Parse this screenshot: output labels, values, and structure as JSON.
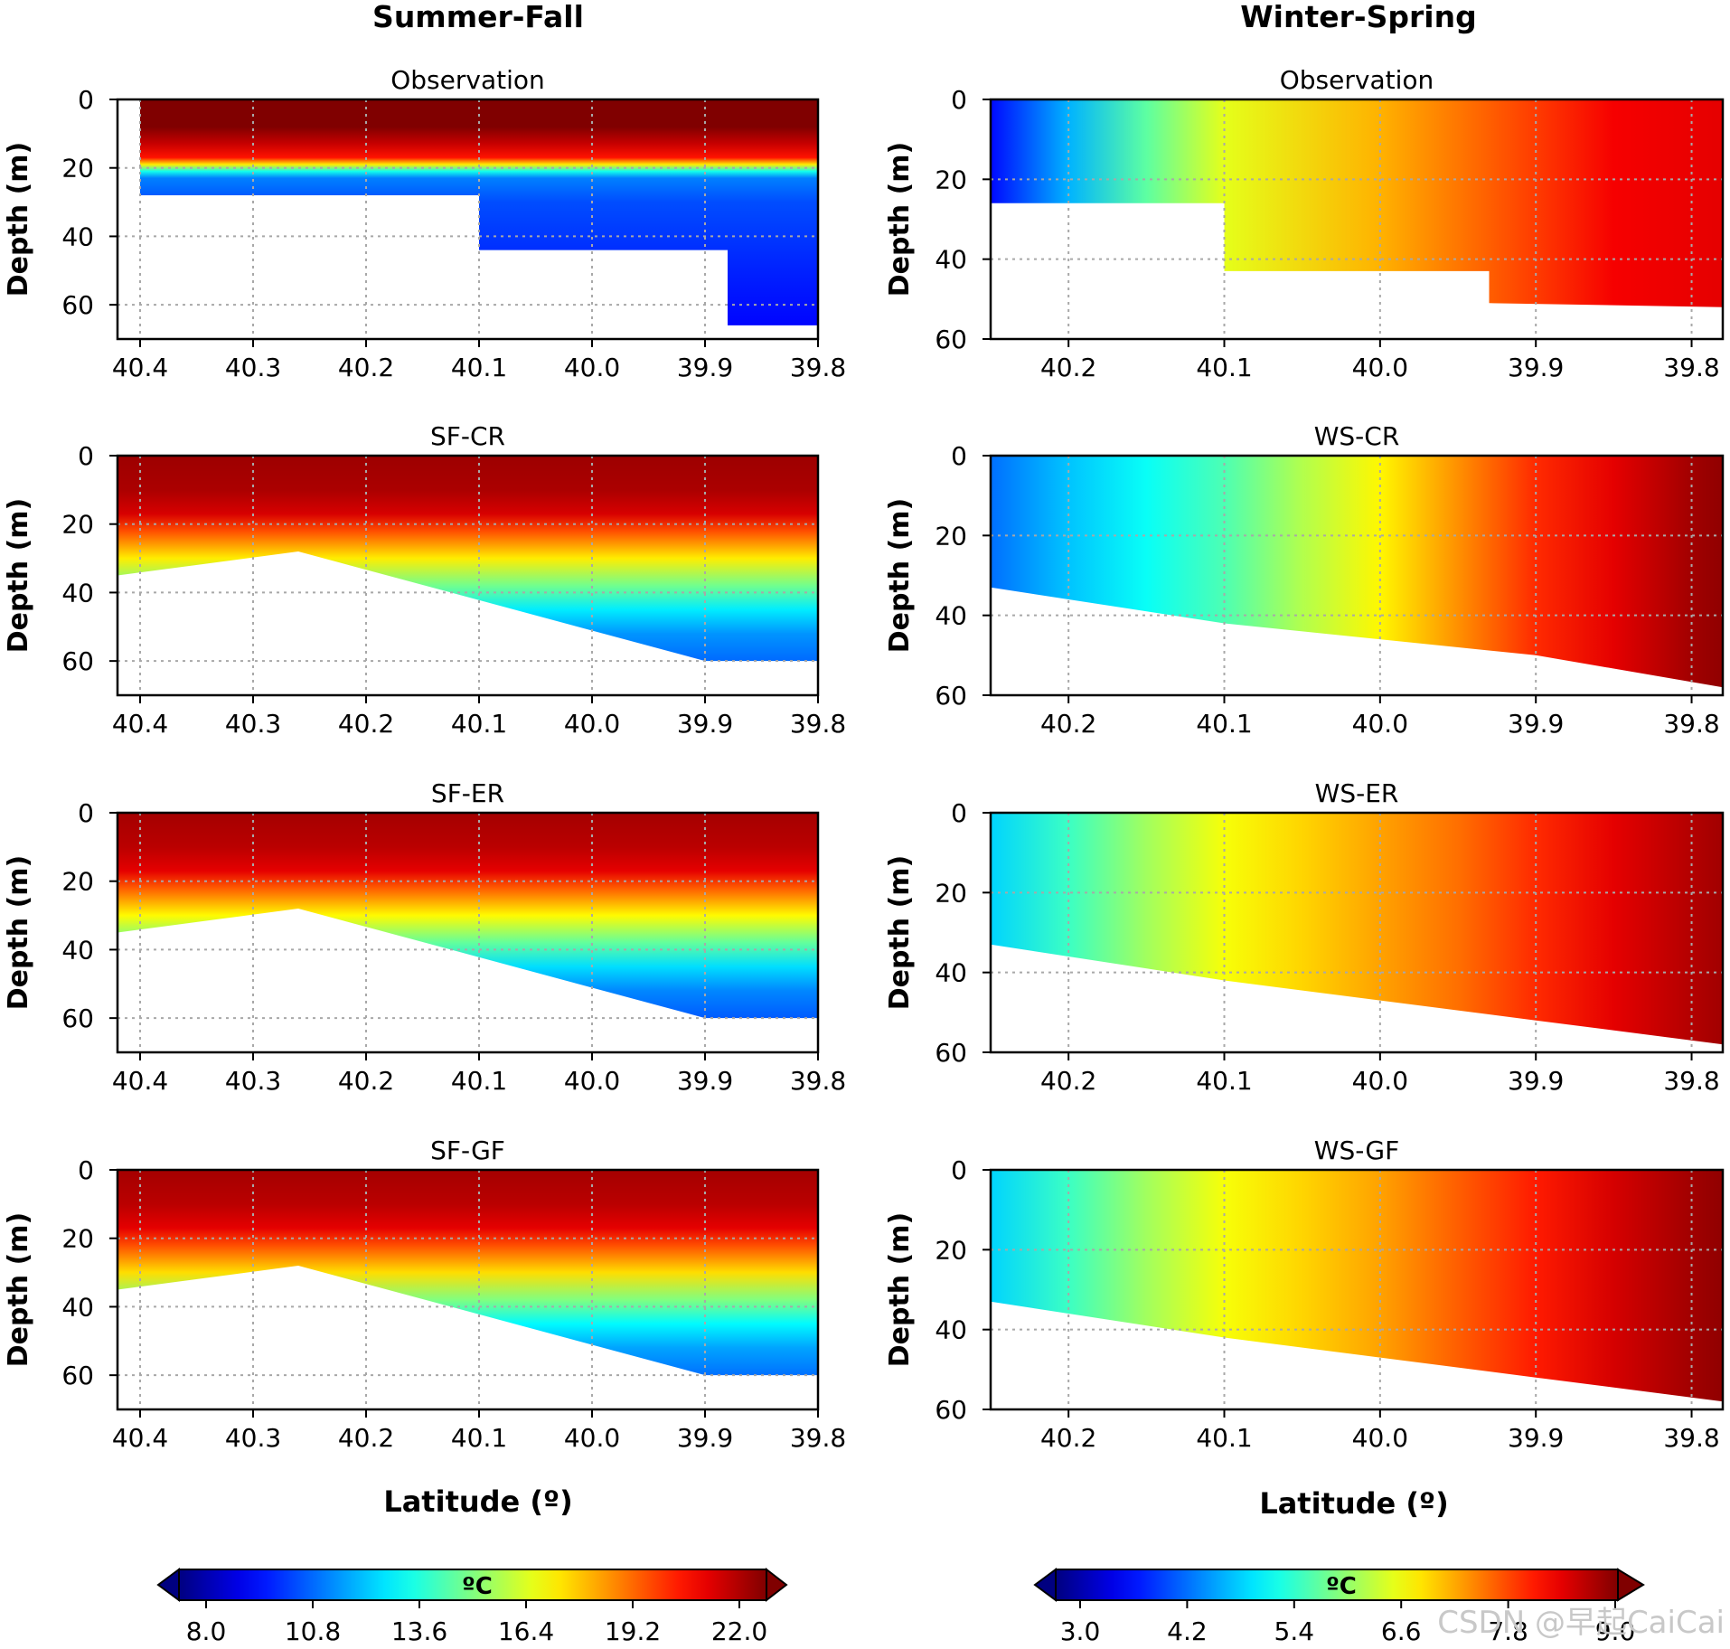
{
  "column_titles": [
    "Summer-Fall",
    "Winter-Spring"
  ],
  "xlabel": "Latitude (º)",
  "ylabel": "Depth (m)",
  "colorbars": [
    {
      "unit": "ºC",
      "ticks": [
        "8.0",
        "10.8",
        "13.6",
        "16.4",
        "19.2",
        "22.0"
      ],
      "min": 8.0,
      "max": 22.0,
      "colormap": "jet"
    },
    {
      "unit": "ºC",
      "ticks": [
        "3.0",
        "4.2",
        "5.4",
        "6.6",
        "7.8",
        "9.0"
      ],
      "min": 3.0,
      "max": 9.0,
      "colormap": "jet"
    }
  ],
  "watermark": "CSDN @早起CaiCai",
  "chart_data": [
    {
      "type": "heatmap",
      "title": "Observation",
      "column": "Summer-Fall",
      "xlabel": "Latitude (º)",
      "ylabel": "Depth (m)",
      "xlim": [
        40.42,
        39.8
      ],
      "ylim": [
        70,
        0
      ],
      "xticks": [
        "40.4",
        "40.3",
        "40.2",
        "40.1",
        "40.0",
        "39.9",
        "39.8"
      ],
      "yticks": [
        "0",
        "20",
        "40",
        "60"
      ],
      "bottom_depth": [
        [
          40.4,
          28
        ],
        [
          40.1,
          28
        ],
        [
          40.1,
          44
        ],
        [
          39.88,
          44
        ],
        [
          39.88,
          66
        ],
        [
          39.8,
          66
        ]
      ],
      "profile": [
        [
          0,
          22.5
        ],
        [
          8,
          22.0
        ],
        [
          13,
          21.0
        ],
        [
          17,
          20.0
        ],
        [
          19,
          17.0
        ],
        [
          21,
          13.5
        ],
        [
          23,
          11.5
        ],
        [
          30,
          10.8
        ],
        [
          50,
          10.2
        ],
        [
          66,
          9.8
        ]
      ],
      "grid": true
    },
    {
      "type": "heatmap",
      "title": "Observation",
      "column": "Winter-Spring",
      "xlabel": "Latitude (º)",
      "ylabel": "Depth (m)",
      "xlim": [
        40.25,
        39.78
      ],
      "ylim": [
        60,
        0
      ],
      "xticks": [
        "40.2",
        "40.1",
        "40.0",
        "39.9",
        "39.8"
      ],
      "yticks": [
        "0",
        "20",
        "40",
        "60"
      ],
      "bottom_depth": [
        [
          40.25,
          26
        ],
        [
          40.1,
          26
        ],
        [
          40.1,
          43
        ],
        [
          39.93,
          43
        ],
        [
          39.93,
          51
        ],
        [
          39.78,
          52
        ]
      ],
      "profile": [
        [
          40.25,
          3.8
        ],
        [
          40.2,
          4.8
        ],
        [
          40.15,
          5.8
        ],
        [
          40.1,
          6.6
        ],
        [
          40.0,
          7.2
        ],
        [
          39.9,
          7.9
        ],
        [
          39.85,
          8.3
        ],
        [
          39.78,
          8.4
        ]
      ],
      "grid": true
    },
    {
      "type": "heatmap",
      "title": "SF-CR",
      "column": "Summer-Fall",
      "xlabel": "Latitude (º)",
      "ylabel": "Depth (m)",
      "xlim": [
        40.42,
        39.8
      ],
      "ylim": [
        70,
        0
      ],
      "xticks": [
        "40.4",
        "40.3",
        "40.2",
        "40.1",
        "40.0",
        "39.9",
        "39.8"
      ],
      "yticks": [
        "0",
        "20",
        "40",
        "60"
      ],
      "bottom_depth": [
        [
          40.42,
          35
        ],
        [
          40.26,
          28
        ],
        [
          39.9,
          60
        ],
        [
          39.8,
          60
        ]
      ],
      "profile": [
        [
          0,
          21.6
        ],
        [
          10,
          21.4
        ],
        [
          17,
          20.8
        ],
        [
          22,
          19.2
        ],
        [
          30,
          17.0
        ],
        [
          38,
          14.8
        ],
        [
          45,
          13.0
        ],
        [
          52,
          11.8
        ],
        [
          60,
          11.2
        ]
      ],
      "grid": true
    },
    {
      "type": "heatmap",
      "title": "WS-CR",
      "column": "Winter-Spring",
      "xlabel": "Latitude (º)",
      "ylabel": "Depth (m)",
      "xlim": [
        40.25,
        39.78
      ],
      "ylim": [
        60,
        0
      ],
      "xticks": [
        "40.2",
        "40.1",
        "40.0",
        "39.9",
        "39.8"
      ],
      "yticks": [
        "0",
        "20",
        "40",
        "60"
      ],
      "bottom_depth": [
        [
          40.25,
          33
        ],
        [
          40.1,
          42
        ],
        [
          39.9,
          50
        ],
        [
          39.78,
          58
        ]
      ],
      "profile": [
        [
          40.25,
          4.4
        ],
        [
          40.2,
          4.9
        ],
        [
          40.15,
          5.3
        ],
        [
          40.1,
          5.7
        ],
        [
          40.05,
          6.3
        ],
        [
          40.0,
          6.8
        ],
        [
          39.95,
          7.4
        ],
        [
          39.9,
          8.0
        ],
        [
          39.85,
          8.4
        ],
        [
          39.8,
          8.8
        ],
        [
          39.78,
          8.9
        ]
      ],
      "grid": true
    },
    {
      "type": "heatmap",
      "title": "SF-ER",
      "column": "Summer-Fall",
      "xlabel": "Latitude (º)",
      "ylabel": "Depth (m)",
      "xlim": [
        40.42,
        39.8
      ],
      "ylim": [
        70,
        0
      ],
      "xticks": [
        "40.4",
        "40.3",
        "40.2",
        "40.1",
        "40.0",
        "39.9",
        "39.8"
      ],
      "yticks": [
        "0",
        "20",
        "40",
        "60"
      ],
      "bottom_depth": [
        [
          40.42,
          35
        ],
        [
          40.26,
          28
        ],
        [
          39.9,
          60
        ],
        [
          39.8,
          60
        ]
      ],
      "profile": [
        [
          0,
          21.5
        ],
        [
          10,
          21.2
        ],
        [
          17,
          20.6
        ],
        [
          22,
          19.0
        ],
        [
          30,
          16.8
        ],
        [
          38,
          14.6
        ],
        [
          45,
          12.8
        ],
        [
          52,
          11.6
        ],
        [
          60,
          11.0
        ]
      ],
      "grid": true
    },
    {
      "type": "heatmap",
      "title": "WS-ER",
      "column": "Winter-Spring",
      "xlabel": "Latitude (º)",
      "ylabel": "Depth (m)",
      "xlim": [
        40.25,
        39.78
      ],
      "ylim": [
        60,
        0
      ],
      "xticks": [
        "40.2",
        "40.1",
        "40.0",
        "39.9",
        "39.8"
      ],
      "yticks": [
        "0",
        "20",
        "40",
        "60"
      ],
      "bottom_depth": [
        [
          40.25,
          33
        ],
        [
          40.1,
          42
        ],
        [
          39.9,
          52
        ],
        [
          39.78,
          58
        ]
      ],
      "profile": [
        [
          40.25,
          5.0
        ],
        [
          40.2,
          5.6
        ],
        [
          40.15,
          6.2
        ],
        [
          40.1,
          6.7
        ],
        [
          40.05,
          7.0
        ],
        [
          40.0,
          7.3
        ],
        [
          39.95,
          7.6
        ],
        [
          39.9,
          8.0
        ],
        [
          39.85,
          8.4
        ],
        [
          39.8,
          8.7
        ],
        [
          39.78,
          8.8
        ]
      ],
      "grid": true
    },
    {
      "type": "heatmap",
      "title": "SF-GF",
      "column": "Summer-Fall",
      "xlabel": "Latitude (º)",
      "ylabel": "Depth (m)",
      "xlim": [
        40.42,
        39.8
      ],
      "ylim": [
        70,
        0
      ],
      "xticks": [
        "40.4",
        "40.3",
        "40.2",
        "40.1",
        "40.0",
        "39.9",
        "39.8"
      ],
      "yticks": [
        "0",
        "20",
        "40",
        "60"
      ],
      "bottom_depth": [
        [
          40.42,
          35
        ],
        [
          40.26,
          28
        ],
        [
          39.9,
          60
        ],
        [
          39.8,
          60
        ]
      ],
      "profile": [
        [
          0,
          21.5
        ],
        [
          10,
          21.2
        ],
        [
          17,
          20.6
        ],
        [
          22,
          19.2
        ],
        [
          30,
          17.2
        ],
        [
          38,
          15.0
        ],
        [
          45,
          13.2
        ],
        [
          52,
          12.0
        ],
        [
          60,
          11.3
        ]
      ],
      "grid": true
    },
    {
      "type": "heatmap",
      "title": "WS-GF",
      "column": "Winter-Spring",
      "xlabel": "Latitude (º)",
      "ylabel": "Depth (m)",
      "xlim": [
        40.25,
        39.78
      ],
      "ylim": [
        60,
        0
      ],
      "xticks": [
        "40.2",
        "40.1",
        "40.0",
        "39.9",
        "39.8"
      ],
      "yticks": [
        "0",
        "20",
        "40",
        "60"
      ],
      "bottom_depth": [
        [
          40.25,
          33
        ],
        [
          40.1,
          42
        ],
        [
          39.9,
          52
        ],
        [
          39.78,
          58
        ]
      ],
      "profile": [
        [
          40.25,
          5.0
        ],
        [
          40.2,
          5.6
        ],
        [
          40.15,
          6.2
        ],
        [
          40.1,
          6.7
        ],
        [
          40.05,
          7.0
        ],
        [
          40.0,
          7.3
        ],
        [
          39.95,
          7.7
        ],
        [
          39.9,
          8.1
        ],
        [
          39.85,
          8.5
        ],
        [
          39.8,
          8.8
        ],
        [
          39.78,
          8.9
        ]
      ],
      "grid": true
    }
  ]
}
